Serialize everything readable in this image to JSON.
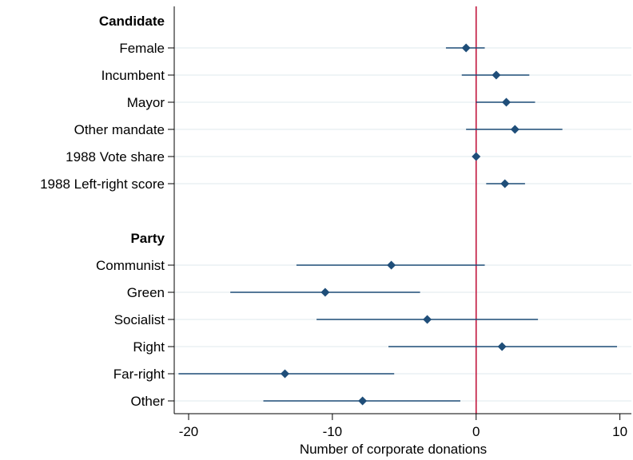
{
  "chart_data": {
    "type": "scatter",
    "subtype": "coefficient-plot",
    "xlabel": "Number of corporate donations",
    "xlim": [
      -21,
      10.8
    ],
    "xticks": [
      -20,
      -10,
      0,
      10
    ],
    "xtick_labels": [
      "-20",
      "-10",
      "0",
      "10"
    ],
    "reference_line": {
      "x": 0,
      "color": "#c0143c"
    },
    "marker_color": "#1f4e79",
    "grid": "horizontal",
    "groups": [
      {
        "header": "Candidate",
        "rows": [
          {
            "label": "Female",
            "estimate": -0.7,
            "ci": [
              -2.1,
              0.6
            ]
          },
          {
            "label": "Incumbent",
            "estimate": 1.4,
            "ci": [
              -1.0,
              3.7
            ]
          },
          {
            "label": "Mayor",
            "estimate": 2.1,
            "ci": [
              0.0,
              4.1
            ]
          },
          {
            "label": "Other mandate",
            "estimate": 2.7,
            "ci": [
              -0.7,
              6.0
            ]
          },
          {
            "label": "1988 Vote share",
            "estimate": 0.0,
            "ci": [
              -0.2,
              0.2
            ]
          },
          {
            "label": "1988 Left-right score",
            "estimate": 2.0,
            "ci": [
              0.7,
              3.4
            ]
          }
        ]
      },
      {
        "header": "Party",
        "rows": [
          {
            "label": "Communist",
            "estimate": -5.9,
            "ci": [
              -12.5,
              0.6
            ]
          },
          {
            "label": "Green",
            "estimate": -10.5,
            "ci": [
              -17.1,
              -3.9
            ]
          },
          {
            "label": "Socialist",
            "estimate": -3.4,
            "ci": [
              -11.1,
              4.3
            ]
          },
          {
            "label": "Right",
            "estimate": 1.8,
            "ci": [
              -6.1,
              9.8
            ]
          },
          {
            "label": "Far-right",
            "estimate": -13.3,
            "ci": [
              -20.7,
              -5.7
            ]
          },
          {
            "label": "Other",
            "estimate": -7.9,
            "ci": [
              -14.8,
              -1.1
            ]
          }
        ]
      }
    ]
  }
}
